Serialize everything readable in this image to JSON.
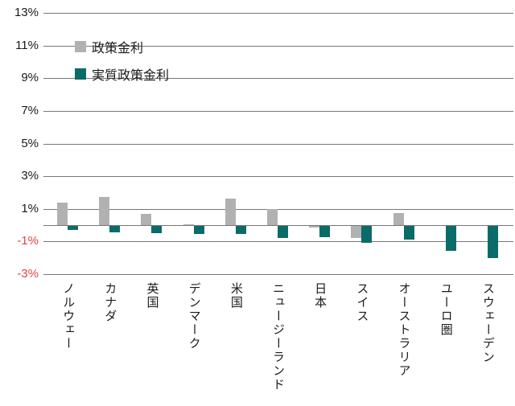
{
  "chart_data": {
    "type": "bar",
    "title": "",
    "xlabel": "",
    "ylabel": "",
    "categories": [
      "ノルウェー",
      "カナダ",
      "英国",
      "デンマーク",
      "米国",
      "ニュージーランド",
      "日本",
      "スイス",
      "オーストラリア",
      "ユーロ圏",
      "スウェーデン"
    ],
    "series": [
      {
        "name": "政策金利",
        "color": "#b1b1b1",
        "values": [
          1.4,
          1.75,
          0.7,
          0.05,
          1.65,
          1.0,
          -0.1,
          -0.75,
          0.75,
          0.0,
          0.0
        ]
      },
      {
        "name": "実質政策金利",
        "color": "#0b6b68",
        "values": [
          -0.25,
          -0.4,
          -0.45,
          -0.5,
          -0.5,
          -0.75,
          -0.7,
          -1.05,
          -0.85,
          -1.5,
          -1.95
        ]
      }
    ],
    "ylim": [
      -3,
      13
    ],
    "yticks": [
      13,
      11,
      9,
      7,
      5,
      3,
      1,
      -1,
      -3
    ],
    "ytick_labels": [
      "13%",
      "11%",
      "9%",
      "7%",
      "5%",
      "3%",
      "1%",
      "-1%",
      "-3%"
    ],
    "grid": true,
    "legend_position": "top-left-inside",
    "colors": {
      "grid": "#777777",
      "axis": "#777777",
      "tick_positive": "#1a1a1a",
      "tick_negative": "#e04545",
      "background": "#ffffff"
    }
  }
}
